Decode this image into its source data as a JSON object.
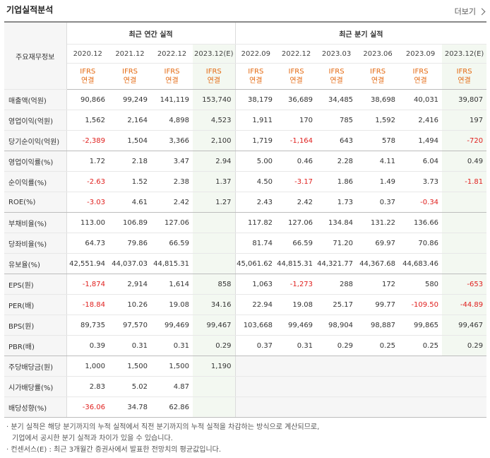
{
  "header": {
    "title": "기업실적분석",
    "more_label": "더보기"
  },
  "table": {
    "corner_label": "주요재무정보",
    "annual_label": "최근 연간 실적",
    "quarter_label": "최근 분기 실적",
    "annual_dates": [
      "2020.12",
      "2021.12",
      "2022.12",
      "2023.12(E)"
    ],
    "quarter_dates": [
      "2022.09",
      "2022.12",
      "2023.03",
      "2023.06",
      "2023.09",
      "2023.12(E)"
    ],
    "ifrs_top": "IFRS",
    "ifrs_bottom": "연결",
    "rows": [
      {
        "label": "매출액(억원)",
        "values": [
          "90,866",
          "99,249",
          "141,119",
          "153,740",
          "38,179",
          "36,689",
          "34,485",
          "38,698",
          "40,031",
          "39,807"
        ]
      },
      {
        "label": "영업이익(억원)",
        "values": [
          "1,562",
          "2,164",
          "4,898",
          "4,523",
          "1,911",
          "170",
          "785",
          "1,592",
          "2,416",
          "197"
        ]
      },
      {
        "label": "당기순이익(억원)",
        "values": [
          "-2,389",
          "1,504",
          "3,366",
          "2,100",
          "1,719",
          "-1,164",
          "643",
          "578",
          "1,494",
          "-720"
        ]
      },
      {
        "label": "영업이익률(%)",
        "values": [
          "1.72",
          "2.18",
          "3.47",
          "2.94",
          "5.00",
          "0.46",
          "2.28",
          "4.11",
          "6.04",
          "0.49"
        ]
      },
      {
        "label": "순이익률(%)",
        "values": [
          "-2.63",
          "1.52",
          "2.38",
          "1.37",
          "4.50",
          "-3.17",
          "1.86",
          "1.49",
          "3.73",
          "-1.81"
        ]
      },
      {
        "label": "ROE(%)",
        "values": [
          "-3.03",
          "4.61",
          "2.42",
          "1.27",
          "2.43",
          "2.42",
          "1.73",
          "0.37",
          "-0.34",
          ""
        ]
      },
      {
        "label": "부채비율(%)",
        "values": [
          "113.00",
          "106.89",
          "127.06",
          "",
          "117.82",
          "127.06",
          "134.84",
          "131.22",
          "136.66",
          ""
        ]
      },
      {
        "label": "당좌비율(%)",
        "values": [
          "64.73",
          "79.86",
          "66.59",
          "",
          "81.74",
          "66.59",
          "71.20",
          "69.97",
          "70.86",
          ""
        ]
      },
      {
        "label": "유보율(%)",
        "values": [
          "42,551.94",
          "44,037.03",
          "44,815.31",
          "",
          "45,061.62",
          "44,815.31",
          "44,321.77",
          "44,367.68",
          "44,683.46",
          ""
        ]
      },
      {
        "label": "EPS(원)",
        "values": [
          "-1,874",
          "2,914",
          "1,614",
          "858",
          "1,063",
          "-1,273",
          "288",
          "172",
          "580",
          "-653"
        ]
      },
      {
        "label": "PER(배)",
        "values": [
          "-18.84",
          "10.26",
          "19.08",
          "34.16",
          "22.94",
          "19.08",
          "25.17",
          "99.77",
          "-109.50",
          "-44.89"
        ]
      },
      {
        "label": "BPS(원)",
        "values": [
          "89,735",
          "97,570",
          "99,469",
          "99,467",
          "103,668",
          "99,469",
          "98,904",
          "98,887",
          "99,865",
          "99,467"
        ]
      },
      {
        "label": "PBR(배)",
        "values": [
          "0.39",
          "0.31",
          "0.31",
          "0.29",
          "0.37",
          "0.31",
          "0.29",
          "0.25",
          "0.25",
          "0.29"
        ]
      },
      {
        "label": "주당배당금(원)",
        "values": [
          "1,000",
          "1,500",
          "1,500",
          "1,190",
          "",
          "",
          "",
          "",
          "",
          ""
        ]
      },
      {
        "label": "시가배당률(%)",
        "values": [
          "2.83",
          "5.02",
          "4.87",
          "",
          "",
          "",
          "",
          "",
          "",
          ""
        ]
      },
      {
        "label": "배당성향(%)",
        "values": [
          "-36.06",
          "34.78",
          "62.86",
          "",
          "",
          "",
          "",
          "",
          "",
          ""
        ]
      }
    ]
  },
  "notes": [
    "· 분기 실적은 해당 분기까지의 누적 실적에서 직전 분기까지의 누적 실적을 차감하는 방식으로 계산되므로,",
    "  기업에서 공시한 분기 실적과 차이가 있을 수 있습니다.",
    "· 컨센서스(E) : 최근 3개월간 증권사에서 발표한 전망치의 평균값입니다."
  ]
}
